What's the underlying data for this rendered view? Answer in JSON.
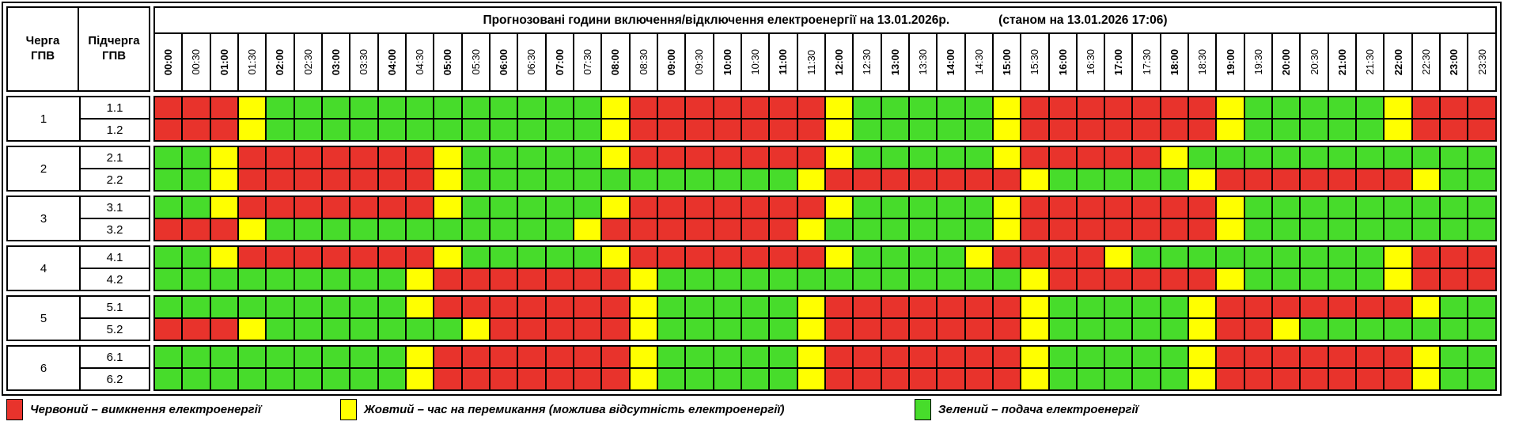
{
  "title": {
    "main": "Прогнозовані години включення/відключення електроенергії на 13.01.2026р.",
    "as_of": "(станом на 13.01.2026 17:06)"
  },
  "header": {
    "queue_col": "Черга ГПВ",
    "subqueue_col": "Підчерга ГПВ"
  },
  "chart_data": {
    "type": "heatmap",
    "title": "Прогнозовані години включення/відключення електроенергії на 13.01.2026р. (станом на 13.01.2026 17:06)",
    "x": [
      "00:00",
      "00:30",
      "01:00",
      "01:30",
      "02:00",
      "02:30",
      "03:00",
      "03:30",
      "04:00",
      "04:30",
      "05:00",
      "05:30",
      "06:00",
      "06:30",
      "07:00",
      "07:30",
      "08:00",
      "08:30",
      "09:00",
      "09:30",
      "10:00",
      "10:30",
      "11:00",
      "11:30",
      "12:00",
      "12:30",
      "13:00",
      "13:30",
      "14:00",
      "14:30",
      "15:00",
      "15:30",
      "16:00",
      "16:30",
      "17:00",
      "17:30",
      "18:00",
      "18:30",
      "19:00",
      "19:30",
      "20:00",
      "20:30",
      "21:00",
      "21:30",
      "22:00",
      "22:30",
      "23:00",
      "23:30"
    ],
    "state_colors": {
      "R": "#e8332c",
      "Y": "#ffff00",
      "G": "#47dc2b"
    },
    "state_meanings": {
      "R": "вимкнення електроенергії",
      "Y": "час на перемикання (можлива відсутність електроенергії)",
      "G": "подача електроенергії"
    },
    "rows": [
      {
        "queue": "1",
        "subqueue": "1.1",
        "states": "RRRYGGGGGGGGGGGGYRRRRRRRYGGGGGYRRRRRRRYGGGGGYRRR"
      },
      {
        "queue": "1",
        "subqueue": "1.2",
        "states": "RRRYGGGGGGGGGGGGYRRRRRRRYGGGGGYRRRRRRRYGGGGGYRRR"
      },
      {
        "queue": "2",
        "subqueue": "2.1",
        "states": "GGYRRRRRRRYGGGGGYRRRRRRRYGGGGGYRRRRRYGGGGGGGGGGG"
      },
      {
        "queue": "2",
        "subqueue": "2.2",
        "states": "GGYRRRRRRRYGGGGGGGGGGGGYRRRRRRRYGGGGGYRRRRRRRYGG"
      },
      {
        "queue": "3",
        "subqueue": "3.1",
        "states": "GGYRRRRRRRYGGGGGYRRRRRRRYGGGGGYRRRRRRRYGGGGGGGGG"
      },
      {
        "queue": "3",
        "subqueue": "3.2",
        "states": "RRRYGGGGGGGGGGGYRRRRRRRYGGGGGGYRRRRRRRYGGGGGGGGG"
      },
      {
        "queue": "4",
        "subqueue": "4.1",
        "states": "GGYRRRRRRRYGGGGGYRRRRRRRYGGGGYRRRRYGGGGGGGGGYRRR"
      },
      {
        "queue": "4",
        "subqueue": "4.2",
        "states": "GGGGGGGGGYRRRRRRRYGGGGGGGGGGGGGYRRRRRRYGGGGGYRRR"
      },
      {
        "queue": "5",
        "subqueue": "5.1",
        "states": "GGGGGGGGGYRRRRRRRYGGGGGYRRRRRRRYGGGGGYRRRRRRRYGG"
      },
      {
        "queue": "5",
        "subqueue": "5.2",
        "states": "RRRYGGGGGGGYRRRRRYGGGGGYRRRRRRRYGGGGGYRRYGGGGGGG"
      },
      {
        "queue": "6",
        "subqueue": "6.1",
        "states": "GGGGGGGGGYRRRRRRRYGGGGGYRRRRRRRYGGGGGYRRRRRRRYGG"
      },
      {
        "queue": "6",
        "subqueue": "6.2",
        "states": "GGGGGGGGGYRRRRRRRYGGGGGYRRRRRRRYGGGGGYRRRRRRRYGG"
      }
    ]
  },
  "legend": [
    {
      "key": "R",
      "label": "Червоний – вимкнення електроенергії"
    },
    {
      "key": "Y",
      "label": "Жовтий – час на перемикання (можлива відсутність електроенергії)"
    },
    {
      "key": "G",
      "label": "Зелений – подача електроенергії"
    }
  ]
}
